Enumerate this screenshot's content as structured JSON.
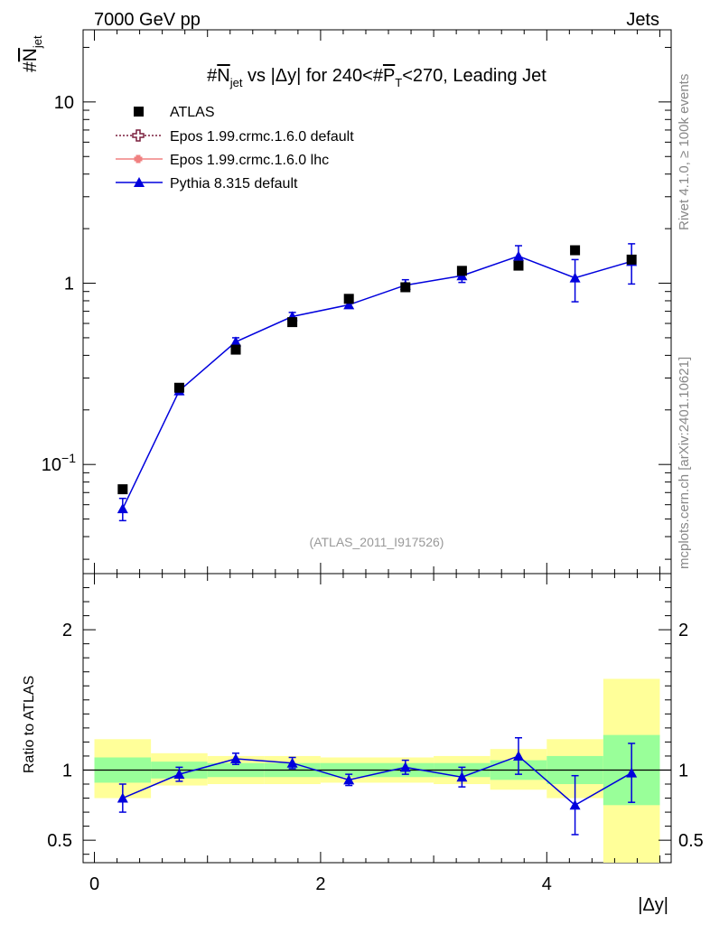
{
  "header": {
    "left": "7000 GeV pp",
    "right": "Jets"
  },
  "side_labels": {
    "rivet": "Rivet 4.1.0, ≥ 100k events",
    "mcplots": "mcplots.cern.ch [arXiv:2401.10621]"
  },
  "watermark": "(ATLAS_2011_I917526)",
  "colors": {
    "atlas": "#000000",
    "epos_default": "#7a1f3d",
    "epos_lhc": "#f08080",
    "pythia": "#0000dd",
    "band_inner": "#99ff99",
    "band_outer": "#ffff99"
  },
  "chart_data": [
    {
      "type": "scatter",
      "title": "#N̄jet vs |Δy| for 240<#P̄T<270, Leading Jet",
      "title_parts": {
        "a": "#",
        "b": "N",
        "c": "jet",
        "d": " vs |Δy| for 240<#",
        "e": "P",
        "f": "T",
        "g": "<270, Leading Jet"
      },
      "ylabel": "#N̄jet",
      "ylabel_parts": {
        "a": "#",
        "b": "N",
        "c": "jet"
      },
      "yscale": "log",
      "xlim": [
        -0.1,
        5.1
      ],
      "ylim": [
        0.025,
        25
      ],
      "y_ticks": [
        {
          "value": 0.1,
          "base": "10",
          "exp": "−1"
        },
        {
          "value": 1,
          "label": "1"
        },
        {
          "value": 10,
          "label": "10"
        }
      ],
      "legend": {
        "placement": "top-left",
        "entries": [
          {
            "key": "atlas",
            "label": "ATLAS"
          },
          {
            "key": "epos_default",
            "label": "Epos 1.99.crmc.1.6.0 default"
          },
          {
            "key": "epos_lhc",
            "label": "Epos 1.99.crmc.1.6.0 lhc"
          },
          {
            "key": "pythia",
            "label": "Pythia 8.315 default"
          }
        ]
      },
      "series": [
        {
          "name": "ATLAS",
          "x": [
            0.25,
            0.75,
            1.25,
            1.75,
            2.25,
            2.75,
            3.25,
            3.75,
            4.25,
            4.75
          ],
          "y": [
            0.073,
            0.265,
            0.43,
            0.61,
            0.82,
            0.95,
            1.17,
            1.25,
            1.52,
            1.35
          ]
        },
        {
          "name": "Pythia 8.315 default",
          "x": [
            0.25,
            0.75,
            1.25,
            1.75,
            2.25,
            2.75,
            3.25,
            3.75,
            4.25,
            4.75
          ],
          "y": [
            0.057,
            0.255,
            0.475,
            0.655,
            0.76,
            0.975,
            1.1,
            1.41,
            1.07,
            1.32
          ],
          "yerr": [
            0.008,
            0.012,
            0.025,
            0.035,
            0.03,
            0.07,
            0.09,
            0.2,
            0.28,
            0.33
          ]
        }
      ]
    },
    {
      "type": "scatter",
      "ylabel": "Ratio to ATLAS",
      "xlabel": "|Δy|",
      "xlim": [
        -0.1,
        5.1
      ],
      "ylim": [
        0.34,
        2.4
      ],
      "x_ticks": [
        0,
        2,
        4
      ],
      "y_ticks": [
        0.5,
        1,
        2
      ],
      "reference_line": 1,
      "bands": [
        {
          "x0": 0.0,
          "x1": 0.5,
          "inner": [
            0.91,
            1.09
          ],
          "outer": [
            0.8,
            1.22
          ]
        },
        {
          "x0": 0.5,
          "x1": 1.0,
          "inner": [
            0.94,
            1.06
          ],
          "outer": [
            0.89,
            1.12
          ]
        },
        {
          "x0": 1.0,
          "x1": 1.5,
          "inner": [
            0.95,
            1.05
          ],
          "outer": [
            0.9,
            1.1
          ]
        },
        {
          "x0": 1.5,
          "x1": 2.0,
          "inner": [
            0.95,
            1.05
          ],
          "outer": [
            0.9,
            1.1
          ]
        },
        {
          "x0": 2.0,
          "x1": 2.5,
          "inner": [
            0.95,
            1.05
          ],
          "outer": [
            0.91,
            1.09
          ]
        },
        {
          "x0": 2.5,
          "x1": 3.0,
          "inner": [
            0.95,
            1.05
          ],
          "outer": [
            0.91,
            1.09
          ]
        },
        {
          "x0": 3.0,
          "x1": 3.5,
          "inner": [
            0.95,
            1.05
          ],
          "outer": [
            0.9,
            1.1
          ]
        },
        {
          "x0": 3.5,
          "x1": 4.0,
          "inner": [
            0.93,
            1.07
          ],
          "outer": [
            0.86,
            1.15
          ]
        },
        {
          "x0": 4.0,
          "x1": 4.5,
          "inner": [
            0.9,
            1.1
          ],
          "outer": [
            0.8,
            1.22
          ]
        },
        {
          "x0": 4.5,
          "x1": 5.0,
          "inner": [
            0.75,
            1.25
          ],
          "outer": [
            0.34,
            1.65
          ]
        }
      ],
      "series": [
        {
          "name": "Pythia 8.315 default",
          "x": [
            0.25,
            0.75,
            1.25,
            1.75,
            2.25,
            2.75,
            3.25,
            3.75,
            4.25,
            4.75
          ],
          "y": [
            0.8,
            0.97,
            1.08,
            1.05,
            0.93,
            1.02,
            0.95,
            1.1,
            0.75,
            0.98
          ],
          "yerr": [
            0.1,
            0.05,
            0.04,
            0.04,
            0.04,
            0.05,
            0.07,
            0.13,
            0.21,
            0.21
          ]
        }
      ]
    }
  ]
}
